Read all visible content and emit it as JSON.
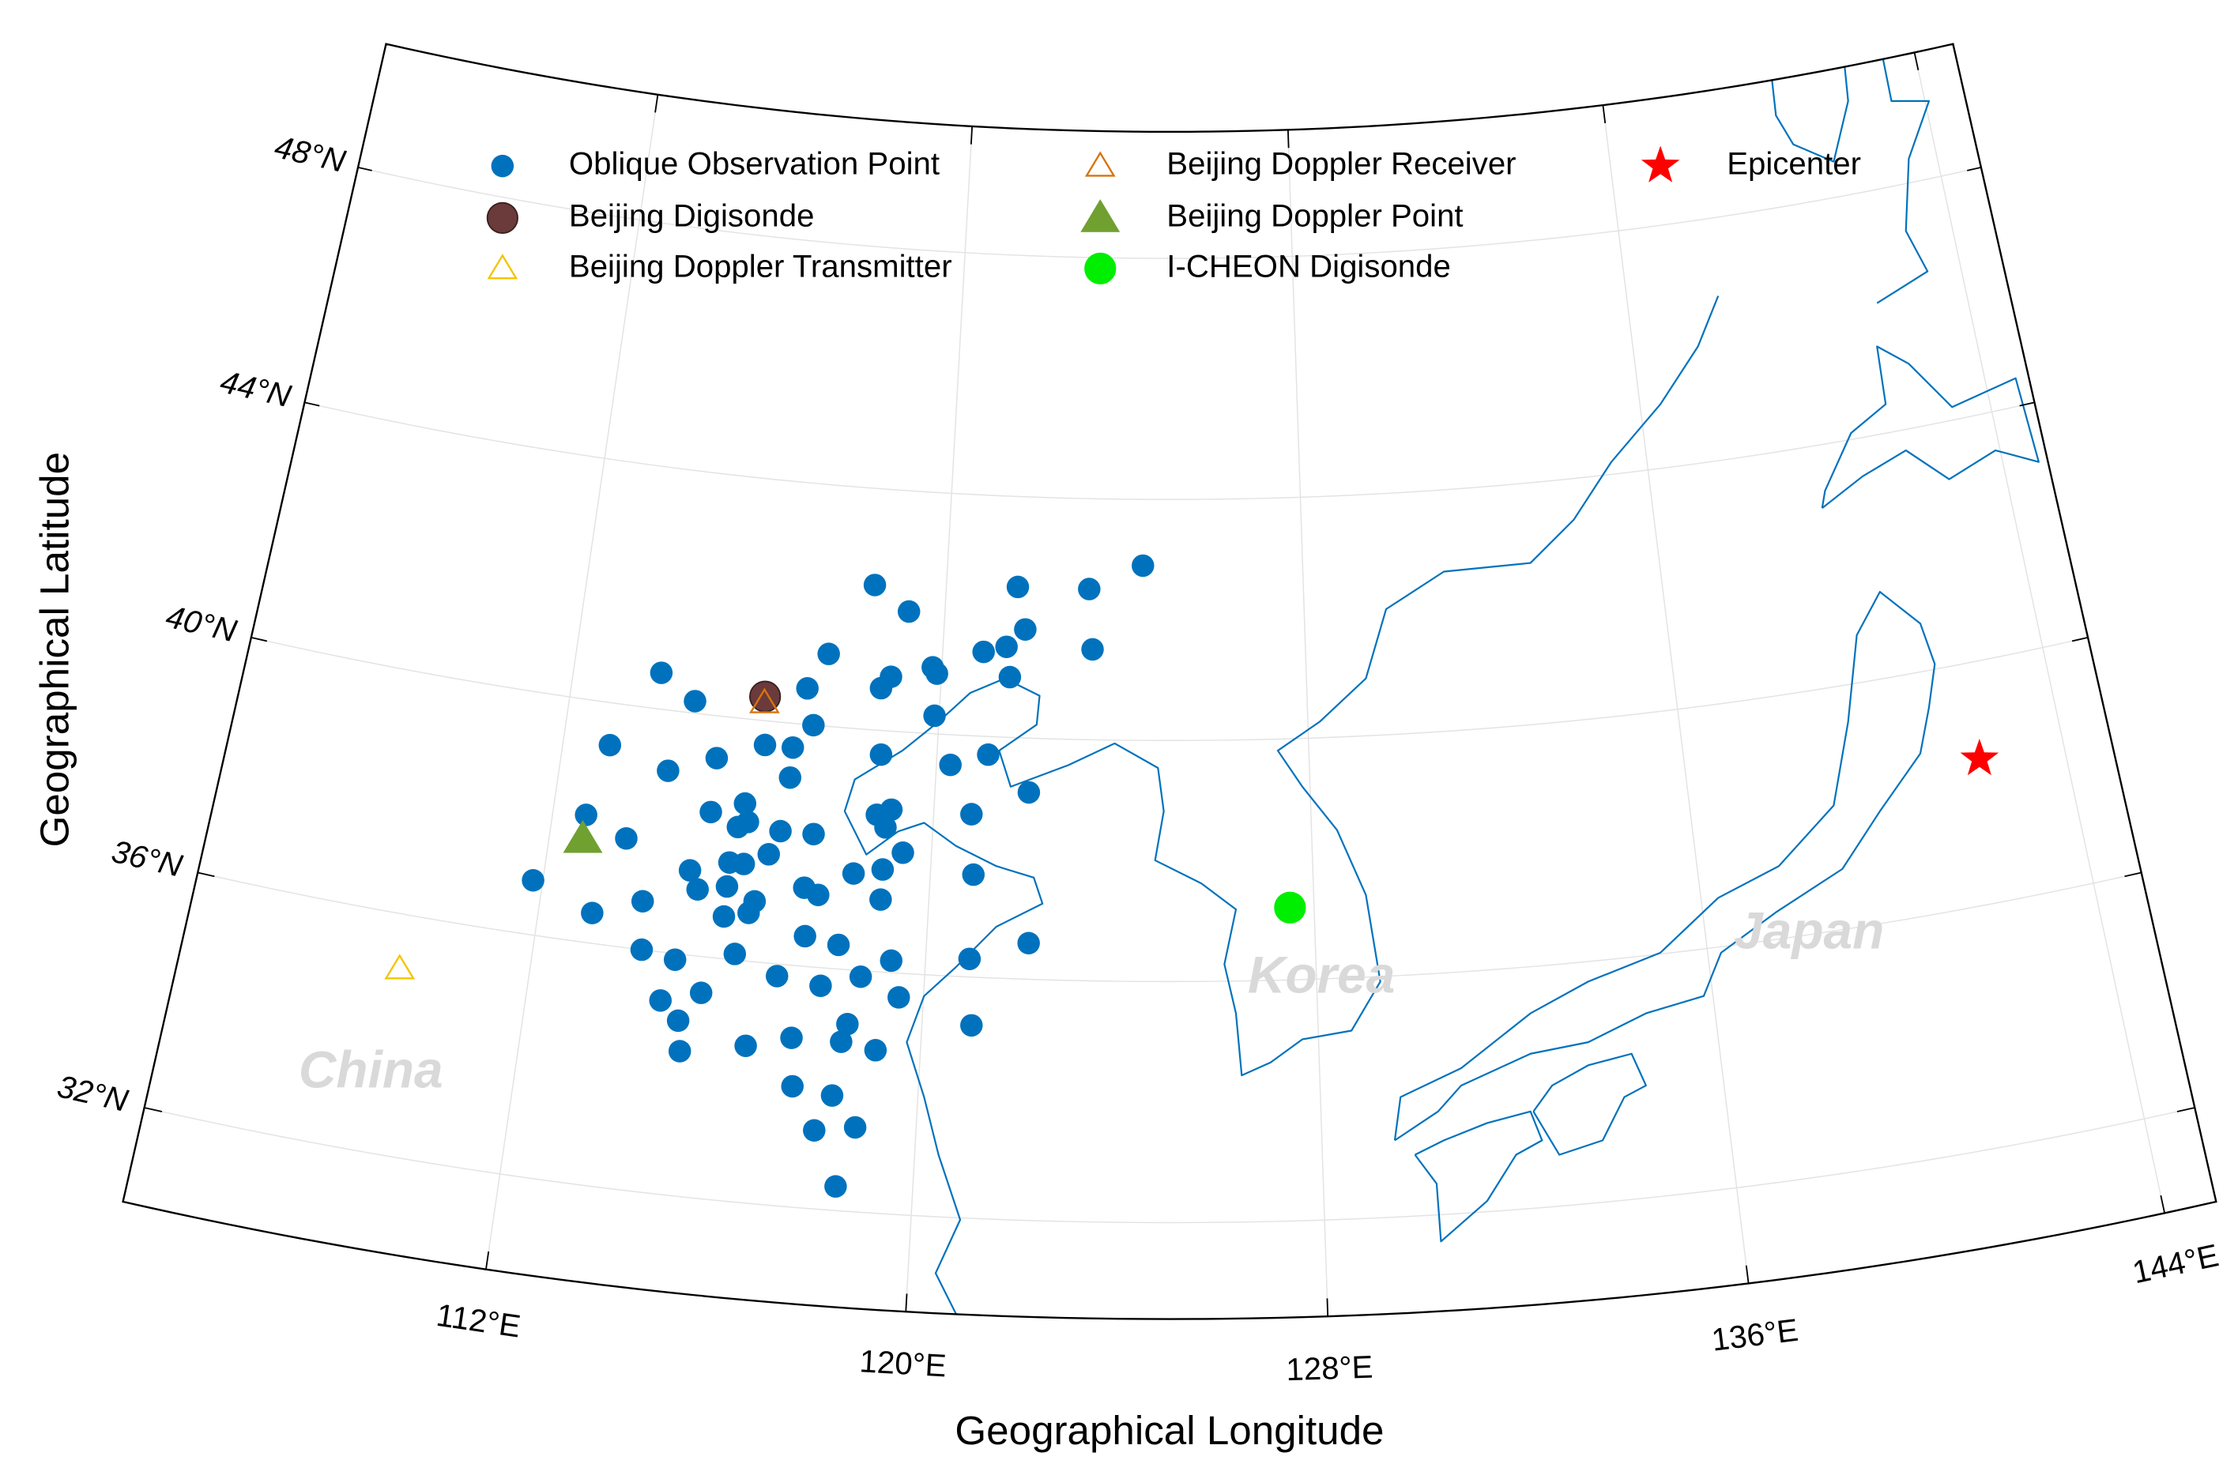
{
  "chart_data": {
    "type": "scatter",
    "x_label": "Geographical Longitude",
    "y_label": "Geographical Latitude",
    "xlim": [
      105,
      145
    ],
    "ylim": [
      30.4,
      50.1
    ],
    "xticks": [
      {
        "value": 112,
        "label": "112°E"
      },
      {
        "value": 120,
        "label": "120°E"
      },
      {
        "value": 128,
        "label": "128°E"
      },
      {
        "value": 136,
        "label": "136°E"
      },
      {
        "value": 144,
        "label": "144°E"
      }
    ],
    "yticks": [
      {
        "value": 32,
        "label": "32°N"
      },
      {
        "value": 36,
        "label": "36°N"
      },
      {
        "value": 40,
        "label": "40°N"
      },
      {
        "value": 44,
        "label": "44°N"
      },
      {
        "value": 48,
        "label": "48°N"
      }
    ],
    "grid": true,
    "legend": "top",
    "annotations": [
      "China",
      "Korea",
      "Japan"
    ],
    "series": [
      {
        "name": "Oblique Observation Point",
        "color": "#0072bd",
        "marker": "dot",
        "x": [
          124.4,
          118.4,
          121.6,
          123.2,
          119.2,
          121.8,
          117.5,
          120.9,
          121.4,
          123.3,
          119.8,
          119.9,
          113.9,
          118.9,
          118.7,
          121.5,
          117.1,
          114.7,
          119.9,
          117.3,
          116.9,
          116.3,
          113.0,
          118.8,
          121.1,
          120.3,
          115.3,
          116.9,
          114.3,
          122.0,
          116.0,
          115.3,
          116.1,
          119.1,
          118.8,
          120.8,
          112.7,
          115.9,
          116.8,
          117.5,
          119.0,
          113.6,
          119.4,
          116.6,
          115.8,
          116.1,
          115.0,
          118.4,
          119.0,
          120.9,
          111.8,
          115.8,
          115.2,
          117.4,
          117.7,
          116.4,
          114.1,
          119.0,
          113.1,
          116.3,
          115.8,
          117.5,
          118.2,
          122.1,
          114.2,
          116.1,
          114.9,
          119.3,
          120.9,
          117.0,
          118.7,
          117.9,
          115.5,
          114.7,
          119.5,
          118.5,
          115.1,
          121.0,
          117.4,
          118.4,
          116.5,
          119.1,
          115.2,
          117.5,
          118.3,
          118.8,
          118.0,
          118.5
        ],
        "values": [
          42.9,
          42.4,
          42.5,
          42.5,
          42.0,
          41.8,
          41.2,
          41.4,
          41.5,
          41.5,
          41.1,
          41.0,
          40.6,
          40.9,
          40.7,
          41.0,
          40.6,
          40.2,
          40.3,
          40.0,
          39.6,
          39.6,
          39.3,
          39.6,
          39.7,
          39.5,
          39.3,
          39.1,
          39.0,
          39.1,
          38.6,
          38.4,
          38.3,
          38.7,
          38.6,
          38.7,
          38.1,
          38.2,
          38.2,
          38.2,
          38.4,
          37.8,
          38.0,
          37.8,
          37.6,
          37.6,
          37.4,
          37.6,
          37.7,
          37.7,
          36.9,
          37.2,
          37.1,
          37.3,
          37.2,
          37.0,
          36.8,
          37.2,
          36.5,
          36.8,
          36.7,
          36.5,
          36.4,
          36.6,
          36.0,
          36.1,
          35.9,
          36.2,
          36.3,
          35.8,
          35.9,
          35.7,
          35.4,
          35.2,
          35.6,
          35.1,
          34.9,
          35.2,
          34.8,
          34.8,
          34.6,
          34.7,
          34.4,
          34.0,
          33.9,
          33.4,
          33.3,
          32.4
        ]
      },
      {
        "name": "Beijing Digisonde",
        "color": "#6b3a3a",
        "marker": "circle",
        "x": [
          116.2
        ],
        "values": [
          40.4
        ]
      },
      {
        "name": "Beijing Doppler Transmitter",
        "color": "#f5c400",
        "marker": "open-triangle",
        "x": [
          109.4
        ],
        "values": [
          35.1
        ]
      },
      {
        "name": "Beijing Doppler Receiver",
        "color": "#d9730d",
        "marker": "open-triangle",
        "x": [
          116.2
        ],
        "values": [
          40.3
        ]
      },
      {
        "name": "Beijing Doppler Point",
        "color": "#70a030",
        "marker": "triangle",
        "x": [
          112.7
        ],
        "values": [
          37.7
        ]
      },
      {
        "name": "I-CHEON Digisonde",
        "color": "#00ee00",
        "marker": "circle",
        "x": [
          127.5
        ],
        "values": [
          37.2
        ]
      },
      {
        "name": "Epicenter",
        "color": "#ff0000",
        "marker": "star",
        "x": [
          142.2
        ],
        "values": [
          38.4
        ]
      }
    ]
  }
}
